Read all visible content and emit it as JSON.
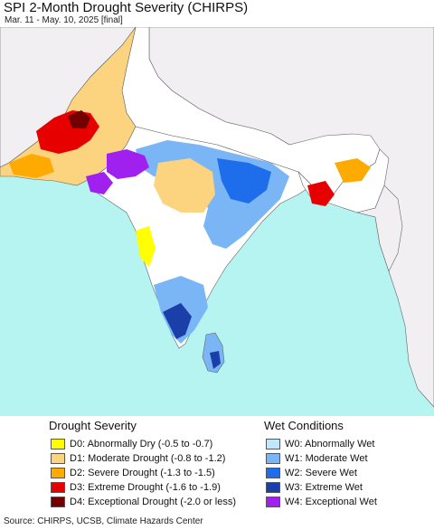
{
  "header": {
    "title": "SPI 2-Month Drought Severity (CHIRPS)",
    "subtitle": "Mar. 11 - May. 10, 2025 [final]"
  },
  "legend": {
    "drought_heading": "Drought Severity",
    "wet_heading": "Wet Conditions",
    "drought": [
      {
        "label": "D0: Abnormally Dry (-0.5 to -0.7)",
        "color": "#ffff00"
      },
      {
        "label": "D1: Moderate Drought (-0.8 to -1.2)",
        "color": "#fcd37f"
      },
      {
        "label": "D2: Severe Drought (-1.3 to -1.5)",
        "color": "#ffaa00"
      },
      {
        "label": "D3: Extreme Drought (-1.6 to -1.9)",
        "color": "#e60000"
      },
      {
        "label": "D4: Exceptional Drought (-2.0 or less)",
        "color": "#730000"
      }
    ],
    "wet": [
      {
        "label": "W0: Abnormally Wet",
        "color": "#bfe8ff"
      },
      {
        "label": "W1: Moderate Wet",
        "color": "#7ab6f5"
      },
      {
        "label": "W2: Severe Wet",
        "color": "#1e6eeb"
      },
      {
        "label": "W3: Extreme Wet",
        "color": "#1a3fa8"
      },
      {
        "label": "W4: Exceptional Wet",
        "color": "#a020f0"
      }
    ]
  },
  "colors": {
    "ocean": "#b5f4f0",
    "land_outside": "#f2eff2",
    "border": "#555555"
  },
  "footer": {
    "source": "Source: CHIRPS, UCSB, Climate Hazards Center"
  }
}
